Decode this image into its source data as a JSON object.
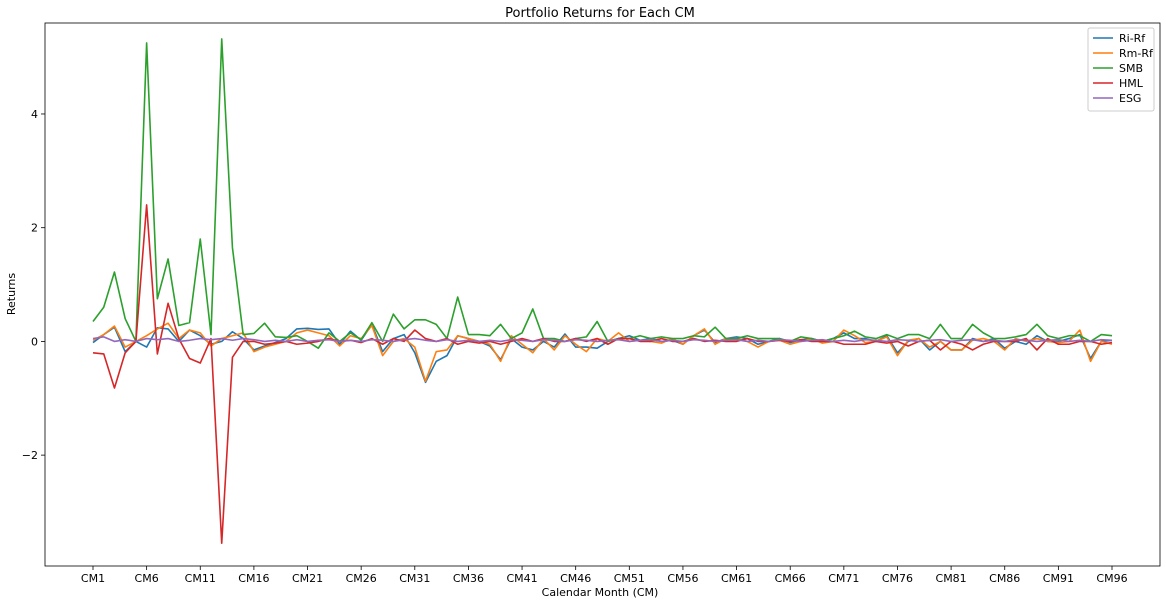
{
  "chart_data": {
    "type": "line",
    "title": "Portfolio Returns for Each CM",
    "xlabel": "Calendar Month (CM)",
    "ylabel": "Returns",
    "ylim": [
      -3.95,
      5.6
    ],
    "yticks": [
      -2,
      0,
      2,
      4
    ],
    "ytick_labels": [
      "−2",
      "0",
      "2",
      "4"
    ],
    "xtick_labels": [
      "CM1",
      "CM6",
      "CM11",
      "CM16",
      "CM21",
      "CM26",
      "CM31",
      "CM36",
      "CM41",
      "CM46",
      "CM51",
      "CM56",
      "CM61",
      "CM66",
      "CM71",
      "CM76",
      "CM81",
      "CM86",
      "CM91",
      "CM96"
    ],
    "grid": false,
    "legend_position": "top-right",
    "categories": [
      "CM1",
      "CM2",
      "CM3",
      "CM4",
      "CM5",
      "CM6",
      "CM7",
      "CM8",
      "CM9",
      "CM10",
      "CM11",
      "CM12",
      "CM13",
      "CM14",
      "CM15",
      "CM16",
      "CM17",
      "CM18",
      "CM19",
      "CM20",
      "CM21",
      "CM22",
      "CM23",
      "CM24",
      "CM25",
      "CM26",
      "CM27",
      "CM28",
      "CM29",
      "CM30",
      "CM31",
      "CM32",
      "CM33",
      "CM34",
      "CM35",
      "CM36",
      "CM37",
      "CM38",
      "CM39",
      "CM40",
      "CM41",
      "CM42",
      "CM43",
      "CM44",
      "CM45",
      "CM46",
      "CM47",
      "CM48",
      "CM49",
      "CM50",
      "CM51",
      "CM52",
      "CM53",
      "CM54",
      "CM55",
      "CM56",
      "CM57",
      "CM58",
      "CM59",
      "CM60",
      "CM61",
      "CM62",
      "CM63",
      "CM64",
      "CM65",
      "CM66",
      "CM67",
      "CM68",
      "CM69",
      "CM70",
      "CM71",
      "CM72",
      "CM73",
      "CM74",
      "CM75",
      "CM76",
      "CM77",
      "CM78",
      "CM79",
      "CM80",
      "CM81",
      "CM82",
      "CM83",
      "CM84",
      "CM85",
      "CM86",
      "CM87",
      "CM88",
      "CM89",
      "CM90",
      "CM91",
      "CM92",
      "CM93",
      "CM94",
      "CM95",
      "CM96"
    ],
    "series": [
      {
        "name": "Ri-Rf",
        "color": "#1f77b4",
        "values": [
          -0.02,
          0.12,
          0.25,
          -0.18,
          0.0,
          -0.1,
          0.24,
          0.22,
          0.0,
          0.2,
          0.1,
          -0.05,
          0.0,
          0.17,
          0.05,
          -0.15,
          -0.08,
          -0.02,
          0.05,
          0.22,
          0.23,
          0.21,
          0.22,
          -0.05,
          0.18,
          0.02,
          0.3,
          -0.18,
          0.05,
          0.12,
          -0.2,
          -0.72,
          -0.35,
          -0.25,
          0.1,
          0.05,
          0.0,
          -0.08,
          -0.32,
          0.05,
          -0.1,
          -0.15,
          0.0,
          -0.1,
          0.13,
          -0.1,
          -0.1,
          -0.12,
          0.0,
          0.05,
          0.1,
          0.02,
          0.05,
          0.0,
          0.02,
          -0.05,
          0.1,
          0.2,
          -0.02,
          0.05,
          0.08,
          0.05,
          -0.05,
          0.0,
          0.05,
          -0.02,
          0.03,
          0.05,
          0.0,
          0.05,
          0.15,
          0.05,
          0.05,
          0.0,
          0.1,
          -0.2,
          0.0,
          0.05,
          -0.15,
          0.0,
          -0.15,
          -0.15,
          0.05,
          0.0,
          0.05,
          -0.12,
          0.0,
          -0.05,
          0.1,
          0.0,
          0.0,
          0.05,
          0.12,
          -0.3,
          0.0,
          0.02
        ]
      },
      {
        "name": "Rm-Rf",
        "color": "#ff7f0e",
        "values": [
          0.02,
          0.12,
          0.27,
          -0.1,
          0.0,
          0.1,
          0.22,
          0.32,
          0.05,
          0.2,
          0.15,
          -0.08,
          0.05,
          0.1,
          0.15,
          -0.18,
          -0.1,
          -0.05,
          0.0,
          0.15,
          0.2,
          0.15,
          0.1,
          -0.08,
          0.1,
          0.05,
          0.28,
          -0.25,
          0.0,
          0.05,
          -0.1,
          -0.7,
          -0.18,
          -0.15,
          0.1,
          0.05,
          0.0,
          -0.05,
          -0.35,
          0.1,
          -0.05,
          -0.2,
          0.05,
          -0.15,
          0.1,
          -0.05,
          -0.18,
          0.05,
          0.0,
          0.15,
          0.0,
          0.02,
          0.0,
          -0.03,
          0.05,
          -0.05,
          0.1,
          0.22,
          -0.05,
          0.05,
          0.05,
          0.0,
          -0.1,
          0.0,
          0.02,
          -0.05,
          0.0,
          0.05,
          -0.03,
          0.0,
          0.2,
          0.1,
          -0.02,
          0.0,
          0.08,
          -0.25,
          0.02,
          0.05,
          -0.1,
          0.0,
          -0.15,
          -0.15,
          0.02,
          0.05,
          0.0,
          -0.15,
          0.05,
          0.0,
          0.05,
          0.0,
          -0.02,
          0.0,
          0.2,
          -0.35,
          0.0,
          -0.05
        ]
      },
      {
        "name": "SMB",
        "color": "#2ca02c",
        "values": [
          0.35,
          0.6,
          1.22,
          0.4,
          0.0,
          5.25,
          0.75,
          1.45,
          0.28,
          0.33,
          1.8,
          0.12,
          5.32,
          1.65,
          0.12,
          0.14,
          0.32,
          0.08,
          0.07,
          0.1,
          0.0,
          -0.12,
          0.15,
          0.0,
          0.15,
          0.03,
          0.33,
          0.0,
          0.48,
          0.22,
          0.38,
          0.38,
          0.3,
          0.05,
          0.78,
          0.12,
          0.12,
          0.1,
          0.3,
          0.05,
          0.15,
          0.57,
          0.05,
          0.05,
          0.0,
          0.05,
          0.08,
          0.35,
          0.0,
          0.05,
          0.05,
          0.1,
          0.05,
          0.08,
          0.05,
          0.05,
          0.1,
          0.08,
          0.25,
          0.05,
          0.05,
          0.1,
          0.05,
          0.05,
          0.05,
          0.0,
          0.08,
          0.05,
          0.0,
          0.05,
          0.1,
          0.18,
          0.08,
          0.05,
          0.12,
          0.05,
          0.12,
          0.12,
          0.05,
          0.3,
          0.05,
          0.05,
          0.3,
          0.15,
          0.05,
          0.05,
          0.08,
          0.12,
          0.3,
          0.1,
          0.05,
          0.1,
          0.1,
          0.0,
          0.12,
          0.1
        ]
      },
      {
        "name": "HML",
        "color": "#d62728",
        "values": [
          -0.2,
          -0.22,
          -0.82,
          -0.2,
          0.0,
          2.4,
          -0.22,
          0.67,
          0.05,
          -0.3,
          -0.38,
          0.05,
          -3.55,
          -0.28,
          0.0,
          0.0,
          -0.05,
          -0.03,
          0.0,
          -0.05,
          -0.03,
          0.0,
          0.05,
          0.0,
          0.02,
          -0.02,
          0.05,
          -0.05,
          0.05,
          0.0,
          0.2,
          0.05,
          0.0,
          0.05,
          -0.05,
          0.0,
          -0.03,
          0.0,
          -0.05,
          0.0,
          0.05,
          0.0,
          0.05,
          0.0,
          0.0,
          0.05,
          0.0,
          0.05,
          -0.05,
          0.05,
          0.05,
          0.0,
          0.0,
          0.05,
          0.0,
          0.0,
          0.05,
          0.0,
          0.02,
          0.0,
          0.0,
          0.05,
          0.0,
          0.0,
          0.02,
          0.0,
          0.03,
          0.0,
          0.0,
          0.0,
          -0.05,
          -0.05,
          -0.05,
          0.0,
          -0.03,
          0.0,
          -0.08,
          0.0,
          0.02,
          -0.15,
          0.0,
          -0.05,
          -0.15,
          -0.05,
          0.0,
          0.0,
          0.0,
          0.05,
          -0.15,
          0.05,
          -0.05,
          -0.05,
          0.0,
          0.0,
          -0.05,
          -0.02
        ]
      },
      {
        "name": "ESG",
        "color": "#9467bd",
        "values": [
          0.05,
          0.08,
          0.0,
          0.03,
          0.0,
          0.05,
          0.03,
          0.05,
          0.0,
          0.02,
          0.05,
          0.03,
          0.05,
          0.02,
          0.05,
          0.03,
          0.0,
          0.02,
          0.0,
          0.03,
          0.0,
          0.02,
          0.03,
          0.0,
          0.02,
          0.0,
          0.03,
          0.02,
          0.0,
          0.03,
          0.05,
          0.02,
          0.0,
          0.03,
          0.0,
          0.02,
          0.0,
          0.02,
          0.0,
          0.03,
          0.02,
          0.0,
          0.03,
          0.02,
          0.0,
          0.03,
          0.02,
          0.0,
          0.02,
          0.03,
          0.0,
          0.02,
          0.03,
          0.0,
          0.02,
          0.0,
          0.03,
          0.02,
          0.0,
          0.02,
          0.03,
          0.0,
          0.02,
          0.0,
          0.03,
          0.02,
          0.0,
          0.02,
          0.03,
          0.0,
          0.02,
          0.0,
          0.03,
          0.02,
          0.0,
          0.03,
          0.02,
          0.0,
          0.02,
          0.03,
          0.0,
          0.02,
          0.03,
          0.0,
          0.02,
          0.0,
          0.03,
          0.02,
          0.0,
          0.02,
          0.03,
          0.0,
          0.02,
          0.0,
          0.03,
          0.02
        ]
      }
    ]
  }
}
